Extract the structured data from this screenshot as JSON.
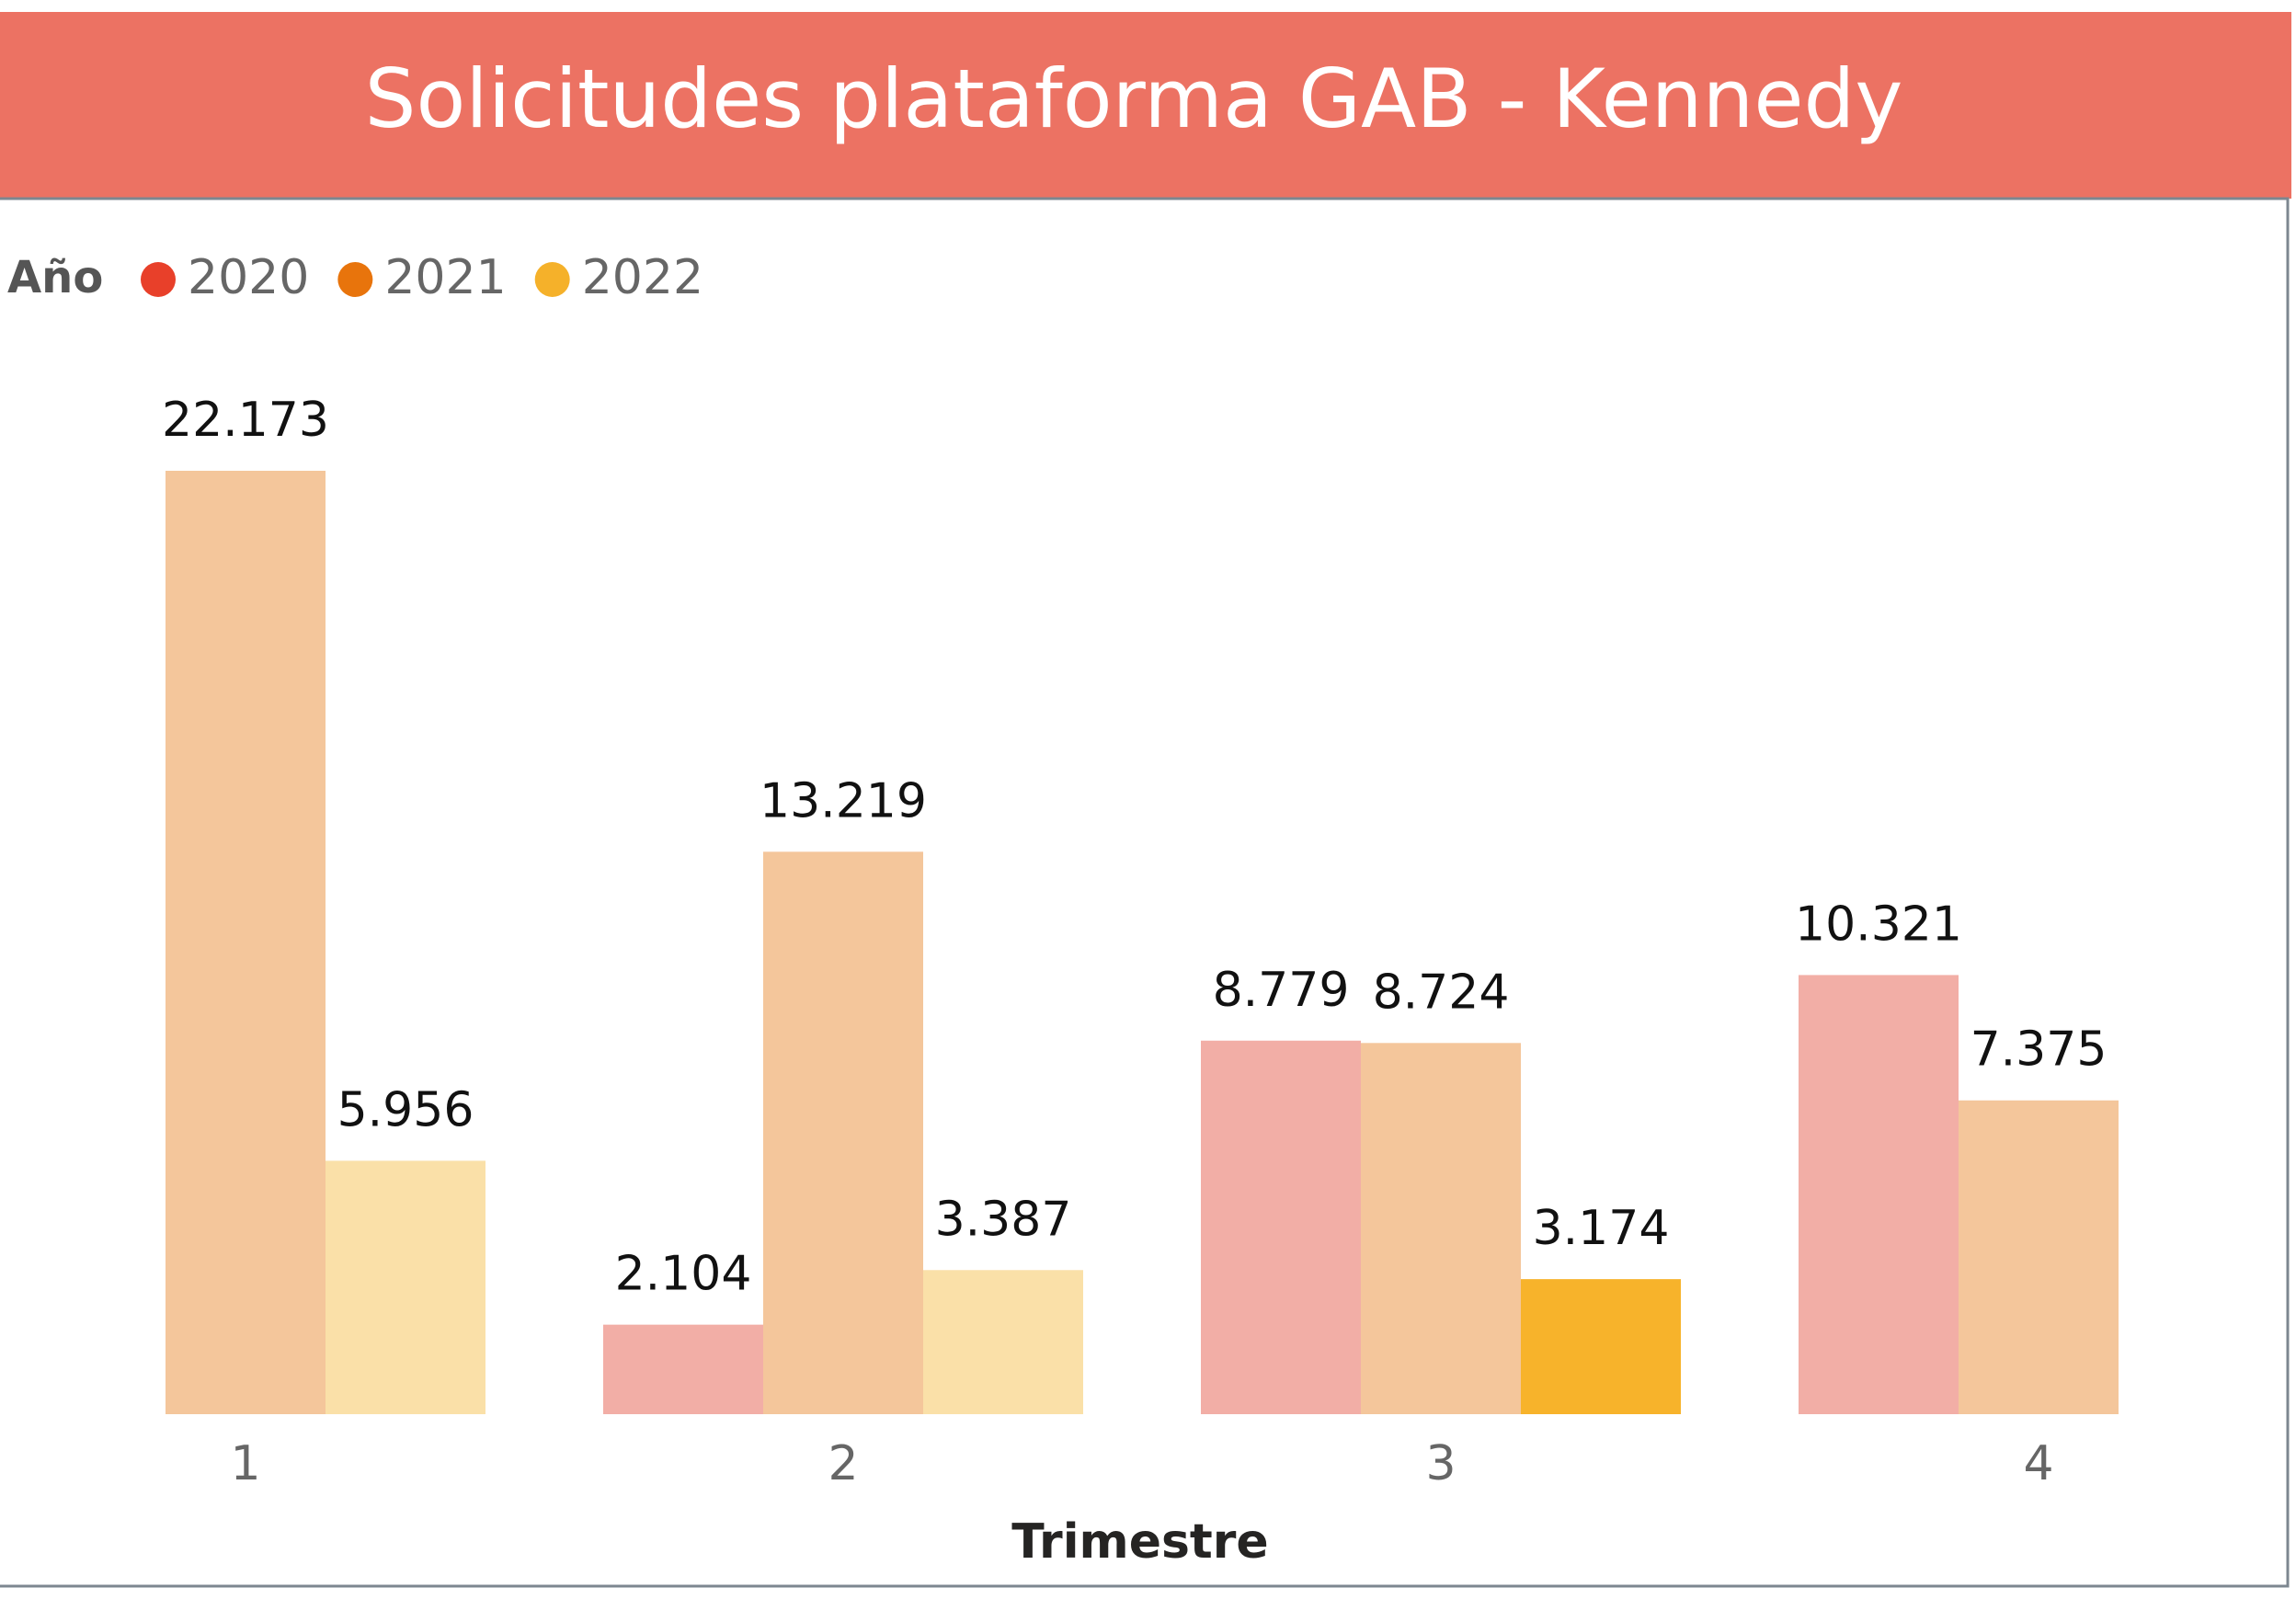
{
  "chart_data": {
    "type": "bar",
    "title": "Solicitudes plataforma GAB - Kennedy",
    "legend_title": "Año",
    "legend_position": "top-left",
    "x_label": "Trimestre",
    "categories": [
      "1",
      "2",
      "3",
      "4"
    ],
    "series": [
      {
        "name": "2020",
        "color": "#e8402a",
        "bar_colors": [
          null,
          "#f2aea6",
          "#f2aea6",
          "#f2aea6"
        ],
        "values": [
          null,
          2104,
          8779,
          10321
        ],
        "value_labels": [
          null,
          "2.104",
          "8.779",
          "10.321"
        ]
      },
      {
        "name": "2021",
        "color": "#e8740c",
        "bar_colors": [
          "#f4c69b",
          "#f4c69b",
          "#f4c69b",
          "#f4c69b"
        ],
        "values": [
          22173,
          13219,
          8724,
          7375
        ],
        "value_labels": [
          "22.173",
          "13.219",
          "8.724",
          "7.375"
        ]
      },
      {
        "name": "2022",
        "color": "#f5b12a",
        "bar_colors": [
          "#fae0a8",
          "#fae0a8",
          "#f7b32b",
          null
        ],
        "values": [
          5956,
          3387,
          3174,
          null
        ],
        "value_labels": [
          "5.956",
          "3.387",
          "3.174",
          null
        ]
      }
    ],
    "ylim": [
      0,
      22173
    ],
    "grid": false
  }
}
